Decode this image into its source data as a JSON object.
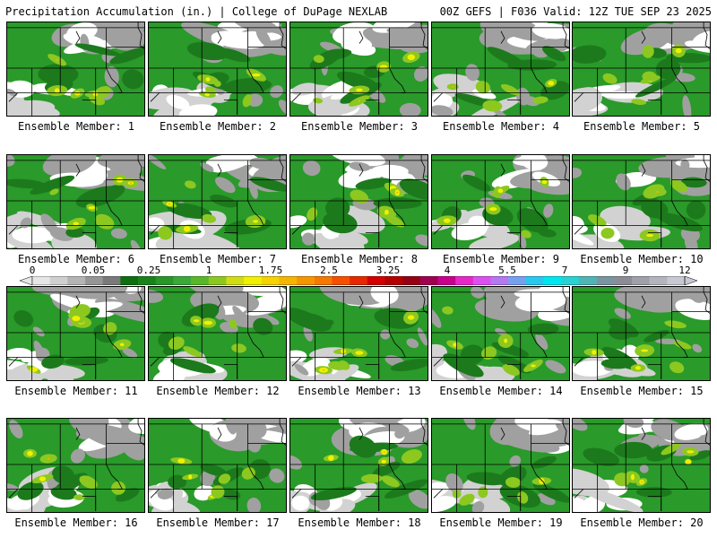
{
  "header": {
    "title": "Precipitation Accumulation (in.) | College of DuPage NEXLAB",
    "run_info": "00Z GEFS | F036 Valid: 12Z TUE SEP 23 2025"
  },
  "members": [
    {
      "label": "Ensemble Member: 1"
    },
    {
      "label": "Ensemble Member: 2"
    },
    {
      "label": "Ensemble Member: 3"
    },
    {
      "label": "Ensemble Member: 4"
    },
    {
      "label": "Ensemble Member: 5"
    },
    {
      "label": "Ensemble Member: 6"
    },
    {
      "label": "Ensemble Member: 7"
    },
    {
      "label": "Ensemble Member: 8"
    },
    {
      "label": "Ensemble Member: 9"
    },
    {
      "label": "Ensemble Member: 10"
    },
    {
      "label": "Ensemble Member: 11"
    },
    {
      "label": "Ensemble Member: 12"
    },
    {
      "label": "Ensemble Member: 13"
    },
    {
      "label": "Ensemble Member: 14"
    },
    {
      "label": "Ensemble Member: 15"
    },
    {
      "label": "Ensemble Member: 16"
    },
    {
      "label": "Ensemble Member: 17"
    },
    {
      "label": "Ensemble Member: 18"
    },
    {
      "label": "Ensemble Member: 19"
    },
    {
      "label": "Ensemble Member: 20"
    }
  ],
  "colorbar": {
    "ticks": [
      "0",
      "0.05",
      "0.25",
      "1",
      "1.75",
      "2.5",
      "3.25",
      "4",
      "5.5",
      "7",
      "9",
      "12"
    ],
    "colors": [
      "#e6e6e6",
      "#cfcfcf",
      "#b4b4b4",
      "#969696",
      "#7a7a7a",
      "#0f6e0f",
      "#1a821a",
      "#289628",
      "#3aa83a",
      "#58b82a",
      "#8cc820",
      "#d2dc14",
      "#f0f000",
      "#f5d200",
      "#f5b400",
      "#f59600",
      "#f57800",
      "#f55000",
      "#e62800",
      "#d20000",
      "#b40000",
      "#960014",
      "#a00050",
      "#c8008c",
      "#e628c8",
      "#dc50f0",
      "#b478f0",
      "#78a0f0",
      "#28c8f0",
      "#00e6f0",
      "#28d2d2",
      "#50b4b4",
      "#7896a0",
      "#8c8c96",
      "#a0a0aa",
      "#b4b4be",
      "#c8c8d2"
    ]
  },
  "map_colors": {
    "green": "#2a9a2a",
    "dark_green": "#1c7a1c",
    "light_green": "#8cc820",
    "yellow": "#f0f000",
    "orange": "#f5b400",
    "gray": "#a0a0a0",
    "light_gray": "#d2d2d2",
    "white": "#ffffff",
    "border": "#000000"
  }
}
